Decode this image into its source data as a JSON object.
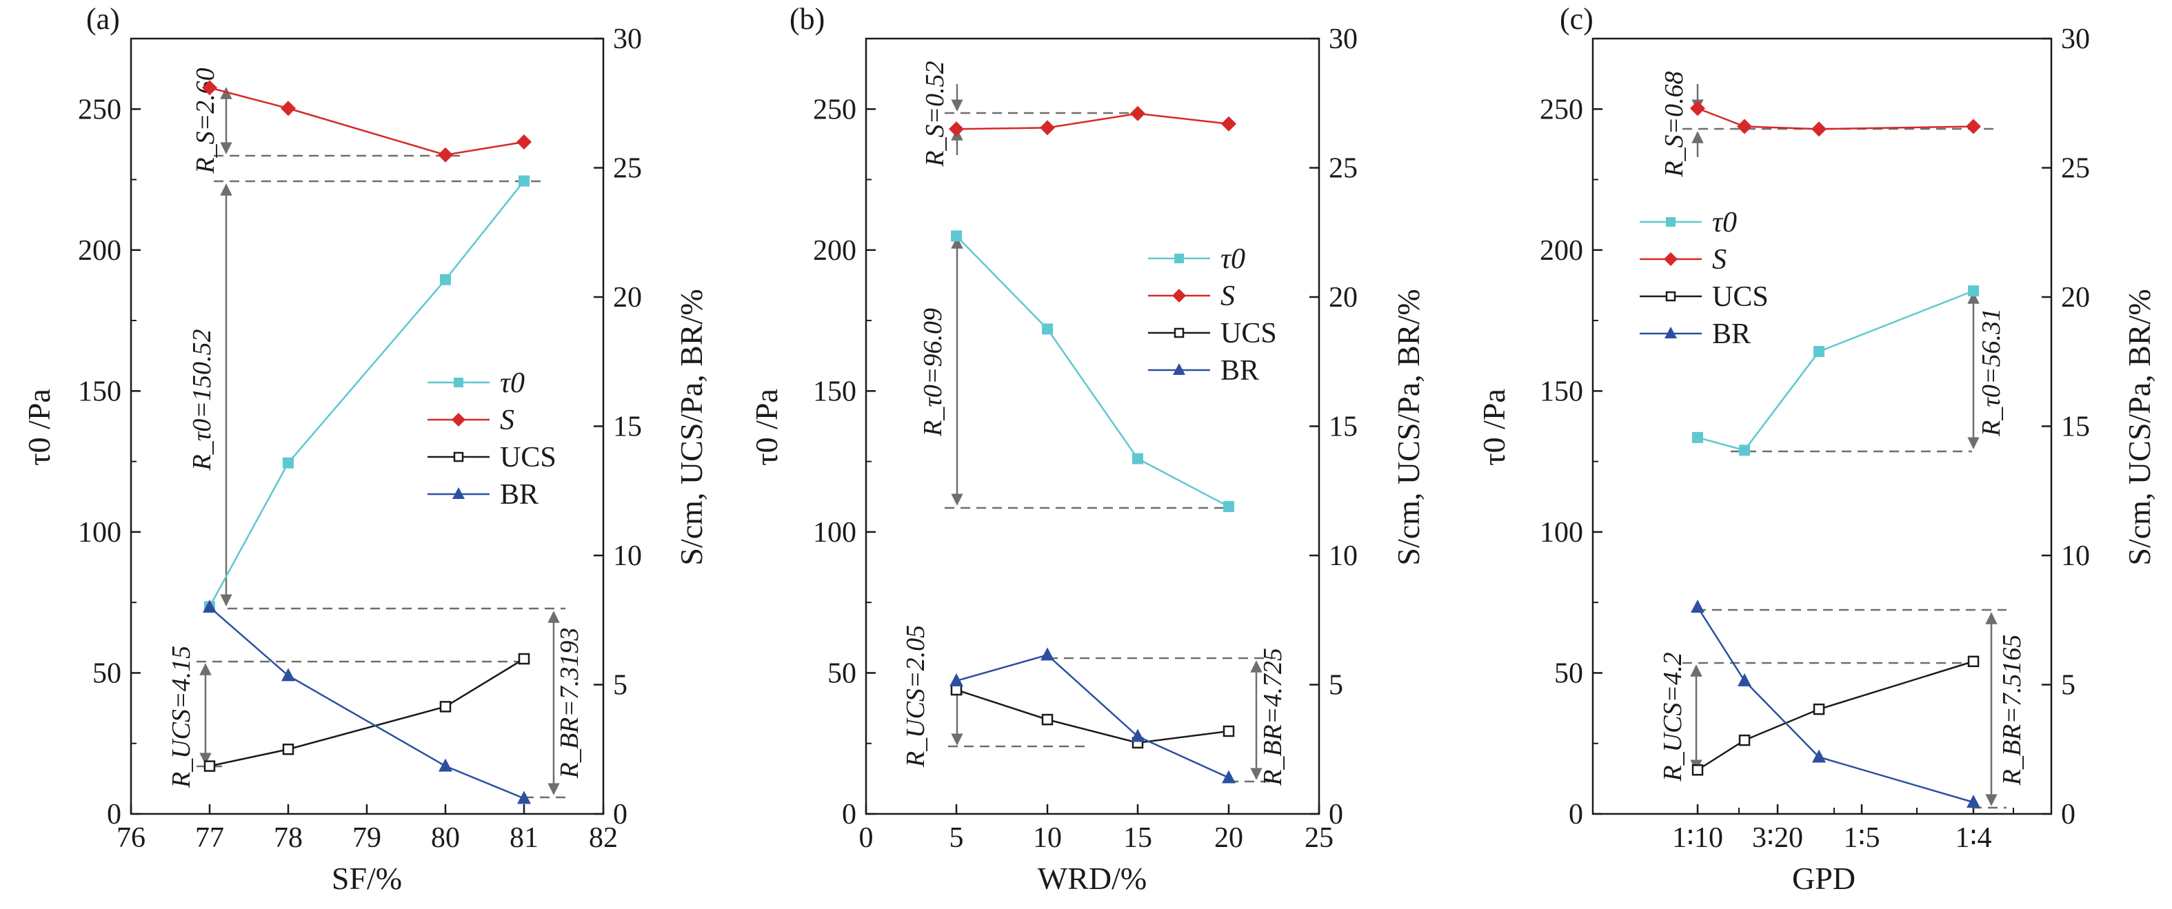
{
  "colors": {
    "tau": "#5ec8d0",
    "s": "#d62828",
    "ucs": "#1a1a1a",
    "br": "#2c4fa0",
    "annotation": "#6e6e6e"
  },
  "chart_data": [
    {
      "type": "line",
      "panel_label": "(a)",
      "xlabel": "SF/%",
      "ylabel_left": "τ0 /Pa",
      "ylabel_right": "S/cm, UCS/Pa, BR/%",
      "xlim": [
        76,
        82
      ],
      "ylim_left": [
        0,
        275
      ],
      "ylim_right": [
        0,
        30
      ],
      "x_ticks": [
        "76",
        "77",
        "78",
        "79",
        "80",
        "81",
        "82"
      ],
      "y_ticks_left": [
        "0",
        "50",
        "100",
        "150",
        "200",
        "250"
      ],
      "y_ticks_right": [
        "0",
        "5",
        "10",
        "15",
        "20",
        "25",
        "30"
      ],
      "legend": [
        "τ0",
        "S",
        "UCS",
        "BR"
      ],
      "series": [
        {
          "name": "τ0",
          "axis": "left",
          "x": [
            77,
            78,
            80,
            81
          ],
          "y": [
            73.5,
            124.5,
            189.5,
            224.5
          ]
        },
        {
          "name": "S",
          "axis": "right",
          "x": [
            77,
            78,
            80,
            81
          ],
          "y": [
            28.1,
            27.3,
            25.5,
            26.0
          ]
        },
        {
          "name": "UCS",
          "axis": "right",
          "x": [
            77,
            78,
            80,
            81
          ],
          "y": [
            1.85,
            2.5,
            4.15,
            6.0
          ]
        },
        {
          "name": "BR",
          "axis": "right",
          "x": [
            77,
            78,
            80,
            81
          ],
          "y": [
            8.0,
            5.35,
            1.85,
            0.6
          ]
        }
      ],
      "annotations": [
        "R_S=2.60",
        "R_τ0=150.52",
        "R_UCS=4.15",
        "R_BR=7.3193"
      ]
    },
    {
      "type": "line",
      "panel_label": "(b)",
      "xlabel": "WRD/%",
      "ylabel_left": "τ0 /Pa",
      "ylabel_right": "S/cm, UCS/Pa, BR/%",
      "xlim": [
        0,
        25
      ],
      "ylim_left": [
        0,
        275
      ],
      "ylim_right": [
        0,
        30
      ],
      "x_ticks": [
        "0",
        "5",
        "10",
        "15",
        "20",
        "25"
      ],
      "y_ticks_left": [
        "0",
        "50",
        "100",
        "150",
        "200",
        "250"
      ],
      "y_ticks_right": [
        "0",
        "5",
        "10",
        "15",
        "20",
        "25",
        "30"
      ],
      "legend": [
        "τ0",
        "S",
        "UCS",
        "BR"
      ],
      "series": [
        {
          "name": "τ0",
          "axis": "left",
          "x": [
            5,
            10,
            15,
            20
          ],
          "y": [
            205,
            172,
            126,
            109
          ]
        },
        {
          "name": "S",
          "axis": "right",
          "x": [
            5,
            10,
            15,
            20
          ],
          "y": [
            26.5,
            26.55,
            27.1,
            26.7
          ]
        },
        {
          "name": "UCS",
          "axis": "right",
          "x": [
            5,
            10,
            15,
            20
          ],
          "y": [
            4.8,
            3.65,
            2.75,
            3.2
          ]
        },
        {
          "name": "BR",
          "axis": "right",
          "x": [
            5,
            10,
            15,
            20
          ],
          "y": [
            5.15,
            6.15,
            3.0,
            1.4
          ]
        }
      ],
      "annotations": [
        "R_S=0.52",
        "R_τ0=96.09",
        "R_UCS=2.05",
        "R_BR=4.725"
      ]
    },
    {
      "type": "line",
      "panel_label": "(c)",
      "xlabel": "GPD",
      "ylabel_left": "τ0 /Pa",
      "ylabel_right": "S/cm, UCS/Pa, BR/%",
      "ylim_left": [
        0,
        275
      ],
      "ylim_right": [
        0,
        30
      ],
      "x_ticks": [
        "1∶10",
        "3∶20",
        "1∶5",
        "1∶4"
      ],
      "y_ticks_left": [
        "0",
        "50",
        "100",
        "150",
        "200",
        "250"
      ],
      "y_ticks_right": [
        "0",
        "5",
        "10",
        "15",
        "20",
        "25",
        "30"
      ],
      "legend": [
        "τ0",
        "S",
        "UCS",
        "BR"
      ],
      "series": [
        {
          "name": "τ0",
          "axis": "left",
          "x": [
            0.1,
            0.125,
            0.167,
            0.25
          ],
          "y": [
            133.5,
            129,
            164,
            185.5
          ]
        },
        {
          "name": "S",
          "axis": "right",
          "x": [
            0.1,
            0.125,
            0.167,
            0.25
          ],
          "y": [
            27.3,
            26.6,
            26.5,
            26.6
          ]
        },
        {
          "name": "UCS",
          "axis": "right",
          "x": [
            0.1,
            0.125,
            0.167,
            0.25
          ],
          "y": [
            1.7,
            2.85,
            4.05,
            5.9
          ]
        },
        {
          "name": "BR",
          "axis": "right",
          "x": [
            0.1,
            0.125,
            0.167,
            0.25
          ],
          "y": [
            8.0,
            5.15,
            2.2,
            0.45
          ]
        }
      ],
      "annotations": [
        "R_S=0.68",
        "R_τ0=56.31",
        "R_UCS=4.2",
        "R_BR=7.5165"
      ]
    }
  ]
}
